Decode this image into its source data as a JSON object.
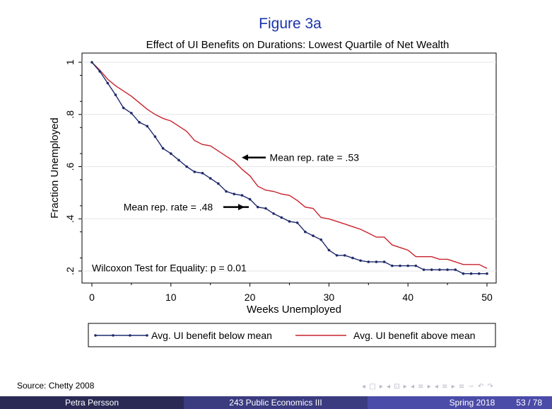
{
  "slide": {
    "heading": "Figure 3a",
    "source": "Source: Chetty 2008",
    "nav_icons": "◂ □ ▸ ◂ ⊡ ▸ ◂ ≡ ▸ ◂ ≡ ▸  ≡  ∽ ↶ ↷",
    "footer": {
      "author": "Petra Persson",
      "course": "243 Public Economics III",
      "date": "Spring 2018",
      "page": "53 / 78"
    }
  },
  "chart_data": {
    "type": "line",
    "title": "Effect of UI Benefits on Durations: Lowest Quartile of Net Wealth",
    "xlabel": "Weeks Unemployed",
    "ylabel": "Fraction Unemployed",
    "xlim": [
      0,
      50
    ],
    "ylim": [
      0.18,
      1.02
    ],
    "xticks": [
      0,
      10,
      20,
      30,
      40,
      50
    ],
    "xtick_labels": [
      "0",
      "10",
      "20",
      "30",
      "40",
      "50"
    ],
    "yticks": [
      0.2,
      0.4,
      0.6,
      0.8,
      1.0
    ],
    "ytick_labels": [
      ".2",
      ".4",
      ".6",
      ".8",
      "1"
    ],
    "grid": true,
    "legend_position": "bottom",
    "annotations": [
      {
        "text": "Mean rep. rate = .53",
        "x": 22.5,
        "y": 0.635
      },
      {
        "text": "Mean rep. rate = .48",
        "x": 4,
        "y": 0.445
      },
      {
        "text": "Wilcoxon Test for Equality: p = 0.01",
        "x": 0,
        "y": 0.21
      }
    ],
    "series": [
      {
        "name": "Avg. UI benefit below mean",
        "color": "#1f2a6b",
        "markers": true,
        "x": [
          0,
          1,
          2,
          3,
          4,
          5,
          6,
          7,
          8,
          9,
          10,
          11,
          12,
          13,
          14,
          15,
          16,
          17,
          18,
          19,
          20,
          21,
          22,
          23,
          24,
          25,
          26,
          27,
          28,
          29,
          30,
          31,
          32,
          33,
          34,
          35,
          36,
          37,
          38,
          39,
          40,
          41,
          42,
          43,
          44,
          45,
          46,
          47,
          48,
          49,
          50
        ],
        "y": [
          1.0,
          0.965,
          0.92,
          0.875,
          0.825,
          0.805,
          0.77,
          0.755,
          0.715,
          0.67,
          0.65,
          0.625,
          0.6,
          0.58,
          0.575,
          0.555,
          0.535,
          0.505,
          0.495,
          0.49,
          0.475,
          0.445,
          0.44,
          0.42,
          0.405,
          0.39,
          0.385,
          0.35,
          0.335,
          0.32,
          0.28,
          0.26,
          0.26,
          0.25,
          0.24,
          0.235,
          0.235,
          0.235,
          0.22,
          0.22,
          0.22,
          0.22,
          0.205,
          0.205,
          0.205,
          0.205,
          0.205,
          0.19,
          0.19,
          0.19,
          0.19
        ]
      },
      {
        "name": "Avg. UI benefit above mean",
        "color": "#c8232c",
        "markers": false,
        "x": [
          0,
          1,
          2,
          3,
          4,
          5,
          6,
          7,
          8,
          9,
          10,
          11,
          12,
          13,
          14,
          15,
          16,
          17,
          18,
          19,
          20,
          21,
          22,
          23,
          24,
          25,
          26,
          27,
          28,
          29,
          30,
          31,
          32,
          33,
          34,
          35,
          36,
          37,
          38,
          39,
          40,
          41,
          42,
          43,
          44,
          45,
          46,
          47,
          48,
          49,
          50
        ],
        "y": [
          1.0,
          0.97,
          0.935,
          0.91,
          0.89,
          0.87,
          0.845,
          0.82,
          0.8,
          0.785,
          0.775,
          0.755,
          0.735,
          0.7,
          0.685,
          0.68,
          0.66,
          0.64,
          0.62,
          0.59,
          0.565,
          0.525,
          0.51,
          0.505,
          0.495,
          0.49,
          0.47,
          0.445,
          0.44,
          0.405,
          0.4,
          0.39,
          0.38,
          0.37,
          0.36,
          0.345,
          0.33,
          0.33,
          0.3,
          0.29,
          0.28,
          0.255,
          0.255,
          0.255,
          0.245,
          0.245,
          0.235,
          0.225,
          0.225,
          0.225,
          0.21
        ]
      }
    ]
  }
}
